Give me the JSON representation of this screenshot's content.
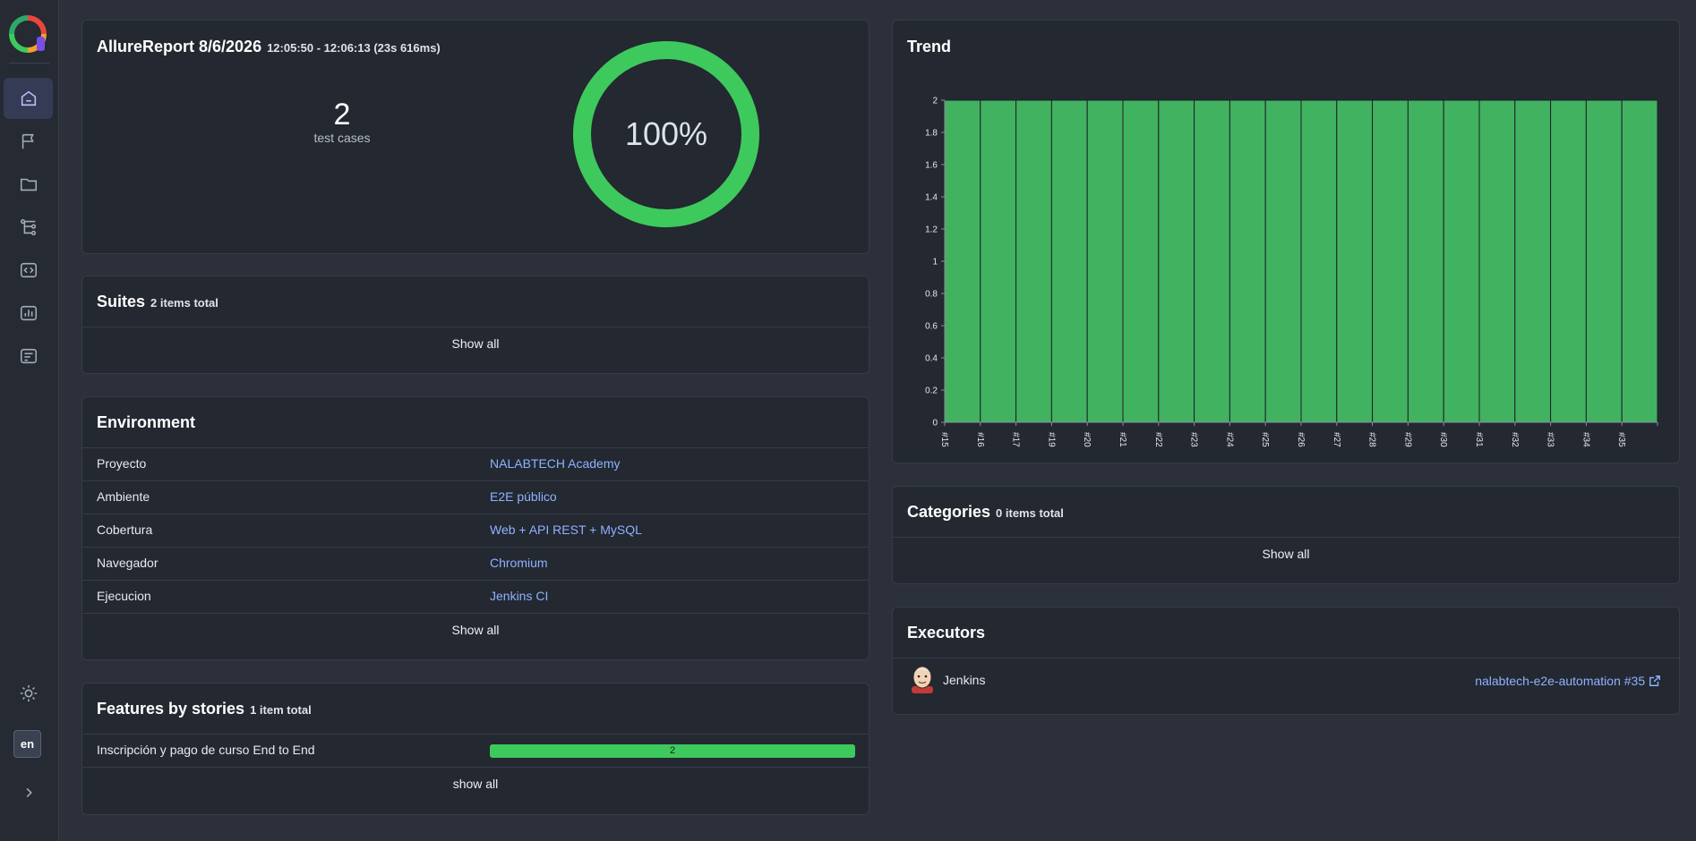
{
  "sidebar": {
    "nav": [
      {
        "name": "overview",
        "icon": "home-icon",
        "active": true
      },
      {
        "name": "categories",
        "icon": "flag-icon",
        "active": false
      },
      {
        "name": "suites",
        "icon": "folder-icon",
        "active": false
      },
      {
        "name": "graphs",
        "icon": "tree-icon",
        "active": false
      },
      {
        "name": "timeline",
        "icon": "code-icon",
        "active": false
      },
      {
        "name": "behaviors",
        "icon": "bar-chart-icon",
        "active": false
      },
      {
        "name": "packages",
        "icon": "list-icon",
        "active": false
      }
    ],
    "theme_icon": "sun-icon",
    "language": "en",
    "expand_icon": "chevron-right-icon"
  },
  "summary": {
    "report_name": "AllureReport 8/6/2026",
    "time_range": "12:05:50 - 12:06:13 (23s 616ms)",
    "test_count": "2",
    "test_count_label": "test cases",
    "percent": "100%",
    "pass_fraction": 1.0,
    "pass_color": "#3ec95c"
  },
  "suites": {
    "title": "Suites",
    "count_label": "2 items total",
    "show_all": "Show all"
  },
  "environment": {
    "title": "Environment",
    "rows": [
      {
        "key": "Proyecto",
        "value": "NALABTECH Academy"
      },
      {
        "key": "Ambiente",
        "value": "E2E público"
      },
      {
        "key": "Cobertura",
        "value": "Web + API REST + MySQL"
      },
      {
        "key": "Navegador",
        "value": "Chromium"
      },
      {
        "key": "Ejecucion",
        "value": "Jenkins CI"
      }
    ],
    "show_all": "Show all"
  },
  "features": {
    "title": "Features by stories",
    "count_label": "1 item total",
    "rows": [
      {
        "name": "Inscripción y pago de curso End to End",
        "count": "2",
        "fraction": 1.0
      }
    ],
    "show_all": "show all"
  },
  "trend": {
    "title": "Trend"
  },
  "categories": {
    "title": "Categories",
    "count_label": "0 items total",
    "show_all": "Show all"
  },
  "executors": {
    "title": "Executors",
    "name": "Jenkins",
    "avatar_icon": "jenkins-icon",
    "link": "nalabtech-e2e-automation #35",
    "link_icon": "external-link-icon"
  },
  "chart_data": {
    "type": "area",
    "title": "Trend",
    "categories": [
      "#15",
      "#16",
      "#17",
      "#19",
      "#20",
      "#21",
      "#22",
      "#23",
      "#24",
      "#25",
      "#26",
      "#27",
      "#28",
      "#29",
      "#30",
      "#31",
      "#32",
      "#33",
      "#34",
      "#35"
    ],
    "series": [
      {
        "name": "",
        "values": [
          2,
          2,
          2,
          2,
          2,
          2,
          2,
          2,
          2,
          2,
          2,
          2,
          2,
          2,
          2,
          2,
          2,
          2,
          2,
          2
        ],
        "color": "#41b25f"
      }
    ],
    "y_ticks": [
      "0",
      "0.2",
      "0.4",
      "0.6",
      "0.8",
      "1",
      "1.2",
      "1.4",
      "1.6",
      "1.8",
      "2"
    ],
    "ylim": [
      0,
      2
    ],
    "xlabel": "",
    "ylabel": "",
    "grid": false
  }
}
